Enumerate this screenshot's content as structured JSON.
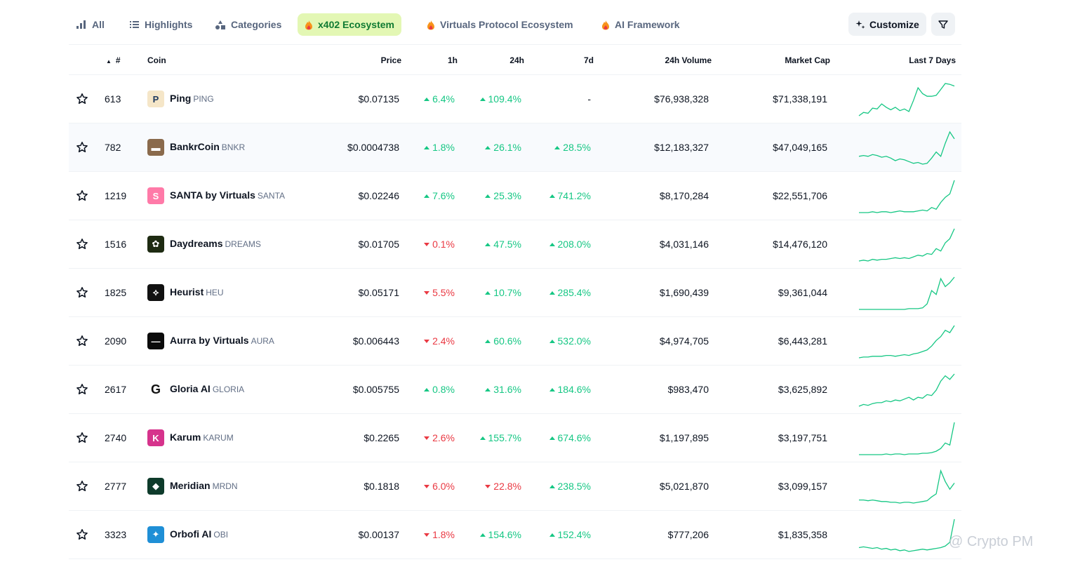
{
  "tabs": [
    {
      "label": "All",
      "icon": "bar-chart-icon"
    },
    {
      "label": "Highlights",
      "icon": "list-icon"
    },
    {
      "label": "Categories",
      "icon": "shapes-icon"
    },
    {
      "label": "x402 Ecosystem",
      "icon": "fire-icon",
      "active": true
    },
    {
      "label": "Virtuals Protocol Ecosystem",
      "icon": "fire-icon"
    },
    {
      "label": "AI Framework",
      "icon": "fire-icon"
    }
  ],
  "toolbar": {
    "customize_label": "Customize",
    "customize_icon": "sparkle-icon",
    "filter_icon": "filter-icon"
  },
  "columns": {
    "rank": "#",
    "coin": "Coin",
    "price": "Price",
    "h1": "1h",
    "h24": "24h",
    "d7": "7d",
    "volume": "24h Volume",
    "mcap": "Market Cap",
    "last7": "Last 7 Days"
  },
  "colors": {
    "up": "#16c784",
    "down": "#ea3943",
    "active_tab_bg": "#e3f7b4",
    "active_tab_text": "#0f7a32"
  },
  "rows": [
    {
      "rank": "613",
      "name": "Ping",
      "symbol": "PING",
      "price": "$0.07135",
      "h1": "6.4%",
      "h1_dir": "up",
      "h24": "109.4%",
      "h24_dir": "up",
      "d7": "-",
      "d7_dir": "none",
      "volume": "$76,938,328",
      "mcap": "$71,338,191",
      "logo_color": "#f5e6c8",
      "logo_text": "P",
      "spark": [
        2,
        6,
        5,
        11,
        10,
        16,
        12,
        9,
        12,
        8,
        10,
        7,
        20,
        35,
        28,
        25,
        25,
        26,
        33,
        40,
        39,
        37
      ]
    },
    {
      "rank": "782",
      "name": "BankrCoin",
      "symbol": "BNKR",
      "price": "$0.0004738",
      "h1": "1.8%",
      "h1_dir": "up",
      "h24": "26.1%",
      "h24_dir": "up",
      "d7": "28.5%",
      "d7_dir": "up",
      "volume": "$12,183,327",
      "mcap": "$47,049,165",
      "logo_color": "#8a6a4c",
      "logo_text": "▬",
      "spark": [
        20,
        21,
        20,
        22,
        21,
        19,
        20,
        18,
        15,
        17,
        16,
        14,
        12,
        13,
        11,
        12,
        18,
        25,
        20,
        35,
        48,
        40
      ]
    },
    {
      "rank": "1219",
      "name": "SANTA by Virtuals",
      "symbol": "SANTA",
      "price": "$0.02246",
      "h1": "7.6%",
      "h1_dir": "up",
      "h24": "25.3%",
      "h24_dir": "up",
      "d7": "741.2%",
      "d7_dir": "up",
      "volume": "$8,170,284",
      "mcap": "$22,551,706",
      "logo_color": "#ff7aa8",
      "logo_text": "S",
      "spark": [
        2,
        2,
        2,
        3,
        2,
        3,
        3,
        2,
        3,
        4,
        3,
        3,
        3,
        4,
        5,
        4,
        8,
        6,
        14,
        20,
        24,
        40
      ]
    },
    {
      "rank": "1516",
      "name": "Daydreams",
      "symbol": "DREAMS",
      "price": "$0.01705",
      "h1": "0.1%",
      "h1_dir": "down",
      "h24": "47.5%",
      "h24_dir": "up",
      "d7": "208.0%",
      "d7_dir": "up",
      "volume": "$4,031,146",
      "mcap": "$14,476,120",
      "logo_color": "#1e2b12",
      "logo_text": "✿",
      "spark": [
        3,
        4,
        3,
        5,
        4,
        5,
        5,
        6,
        7,
        6,
        7,
        6,
        8,
        10,
        9,
        12,
        11,
        18,
        15,
        25,
        30,
        42
      ]
    },
    {
      "rank": "1825",
      "name": "Heurist",
      "symbol": "HEU",
      "price": "$0.05171",
      "h1": "5.5%",
      "h1_dir": "down",
      "h24": "10.7%",
      "h24_dir": "up",
      "d7": "285.4%",
      "d7_dir": "up",
      "volume": "$1,690,439",
      "mcap": "$9,361,044",
      "logo_color": "#111111",
      "logo_text": "⟡",
      "spark": [
        1,
        1,
        1,
        1,
        1,
        1,
        1,
        1,
        1,
        1,
        1,
        2,
        2,
        2,
        3,
        8,
        25,
        20,
        40,
        30,
        35,
        42
      ]
    },
    {
      "rank": "2090",
      "name": "Aurra by Virtuals",
      "symbol": "AURA",
      "price": "$0.006443",
      "h1": "2.4%",
      "h1_dir": "down",
      "h24": "60.6%",
      "h24_dir": "up",
      "d7": "532.0%",
      "d7_dir": "up",
      "volume": "$4,974,705",
      "mcap": "$6,443,281",
      "logo_color": "#0b0b0b",
      "logo_text": "—",
      "spark": [
        3,
        4,
        4,
        5,
        5,
        5,
        6,
        6,
        5,
        6,
        7,
        6,
        8,
        9,
        11,
        13,
        18,
        25,
        30,
        38,
        35,
        44
      ]
    },
    {
      "rank": "2617",
      "name": "Gloria AI",
      "symbol": "GLORIA",
      "price": "$0.005755",
      "h1": "0.8%",
      "h1_dir": "up",
      "h24": "31.6%",
      "h24_dir": "up",
      "d7": "184.6%",
      "d7_dir": "up",
      "volume": "$983,470",
      "mcap": "$3,625,892",
      "logo_color": "#ffffff",
      "logo_text": "G",
      "spark": [
        2,
        4,
        3,
        5,
        6,
        6,
        8,
        7,
        9,
        8,
        10,
        12,
        9,
        12,
        11,
        15,
        14,
        20,
        30,
        36,
        32,
        38
      ]
    },
    {
      "rank": "2740",
      "name": "Karum",
      "symbol": "KARUM",
      "price": "$0.2265",
      "h1": "2.6%",
      "h1_dir": "down",
      "h24": "155.7%",
      "h24_dir": "up",
      "d7": "674.6%",
      "d7_dir": "up",
      "volume": "$1,197,895",
      "mcap": "$3,197,751",
      "logo_color": "#d6338c",
      "logo_text": "K",
      "spark": [
        1,
        1,
        1,
        1,
        1,
        1,
        2,
        1,
        2,
        2,
        1,
        2,
        2,
        2,
        3,
        3,
        4,
        6,
        10,
        18,
        15,
        48
      ]
    },
    {
      "rank": "2777",
      "name": "Meridian",
      "symbol": "MRDN",
      "price": "$0.1818",
      "h1": "6.0%",
      "h1_dir": "down",
      "h24": "22.8%",
      "h24_dir": "down",
      "d7": "238.5%",
      "d7_dir": "up",
      "volume": "$5,021,870",
      "mcap": "$3,099,157",
      "logo_color": "#0e3b2b",
      "logo_text": "◆",
      "spark": [
        6,
        6,
        5,
        6,
        5,
        4,
        4,
        3,
        3,
        2,
        3,
        3,
        2,
        3,
        4,
        5,
        10,
        14,
        44,
        30,
        20,
        28
      ]
    },
    {
      "rank": "3323",
      "name": "Orbofi AI",
      "symbol": "OBI",
      "price": "$0.00137",
      "h1": "1.8%",
      "h1_dir": "down",
      "h24": "154.6%",
      "h24_dir": "up",
      "d7": "152.4%",
      "d7_dir": "up",
      "volume": "$777,206",
      "mcap": "$1,835,358",
      "logo_color": "#1f8fd6",
      "logo_text": "✦",
      "spark": [
        8,
        9,
        8,
        7,
        8,
        6,
        7,
        5,
        6,
        4,
        5,
        3,
        4,
        5,
        6,
        5,
        6,
        7,
        8,
        10,
        15,
        45
      ]
    }
  ],
  "watermark": "@ Crypto PM"
}
